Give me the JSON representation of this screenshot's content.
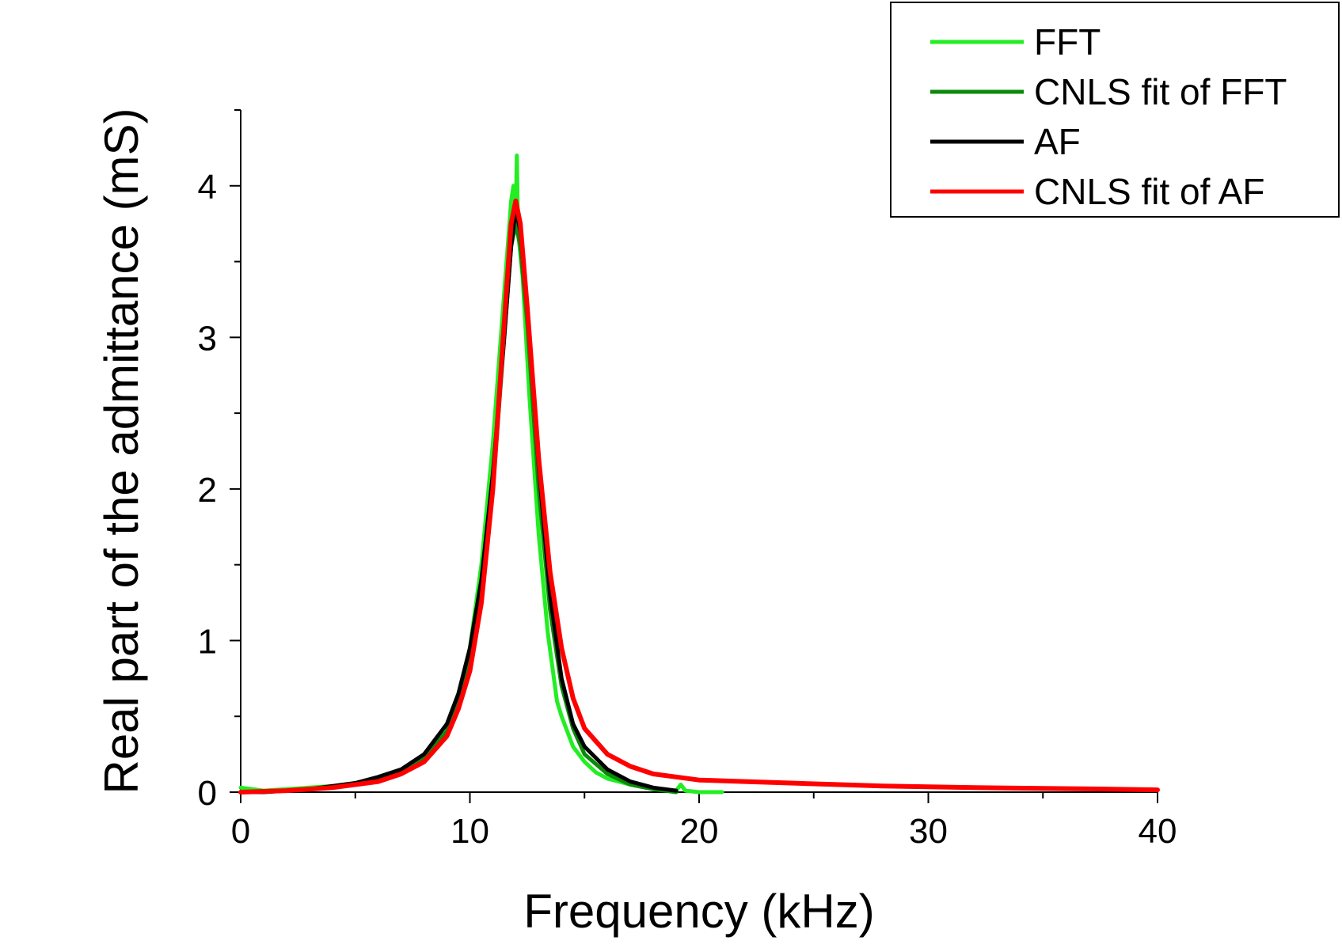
{
  "chart_data": {
    "type": "line",
    "title": "",
    "xlabel": "Frequency (kHz)",
    "ylabel": "Real part of the admittance (mS)",
    "xlim": [
      0,
      40
    ],
    "ylim": [
      0,
      4.5
    ],
    "x_ticks": [
      0,
      10,
      20,
      30,
      40
    ],
    "x_tick_labels": [
      "0",
      "10",
      "20",
      "30",
      "40"
    ],
    "y_ticks": [
      0,
      1,
      2,
      3,
      4
    ],
    "y_tick_labels": [
      "0",
      "1",
      "2",
      "3",
      "4"
    ],
    "grid": false,
    "legend_position": "top-right",
    "series": [
      {
        "name": "FFT",
        "color": "#22ee22",
        "points": [
          [
            0,
            0.03
          ],
          [
            1,
            0.01
          ],
          [
            2,
            0.02
          ],
          [
            3,
            0.03
          ],
          [
            4,
            0.04
          ],
          [
            5,
            0.06
          ],
          [
            5.5,
            0.08
          ],
          [
            6,
            0.09
          ],
          [
            6.5,
            0.11
          ],
          [
            7,
            0.14
          ],
          [
            7.5,
            0.18
          ],
          [
            8,
            0.25
          ],
          [
            8.5,
            0.32
          ],
          [
            9,
            0.45
          ],
          [
            9.5,
            0.65
          ],
          [
            10,
            0.95
          ],
          [
            10.5,
            1.5
          ],
          [
            11,
            2.3
          ],
          [
            11.3,
            2.9
          ],
          [
            11.6,
            3.5
          ],
          [
            11.8,
            3.9
          ],
          [
            11.9,
            4.0
          ],
          [
            12.0,
            3.8
          ],
          [
            12.05,
            4.2
          ],
          [
            12.1,
            3.7
          ],
          [
            12.3,
            3.4
          ],
          [
            12.6,
            2.6
          ],
          [
            13,
            1.7
          ],
          [
            13.4,
            1.05
          ],
          [
            13.8,
            0.6
          ],
          [
            14,
            0.5
          ],
          [
            14.5,
            0.3
          ],
          [
            15,
            0.2
          ],
          [
            15.5,
            0.13
          ],
          [
            16,
            0.09
          ],
          [
            17,
            0.05
          ],
          [
            18,
            0.02
          ],
          [
            19,
            0.01
          ],
          [
            19.2,
            0.05
          ],
          [
            19.4,
            0.01
          ],
          [
            20,
            0.0
          ],
          [
            21,
            0.0
          ]
        ]
      },
      {
        "name": "CNLS fit of FFT",
        "color": "#0a8a0a",
        "points": [
          [
            0,
            0.0
          ],
          [
            2,
            0.01
          ],
          [
            4,
            0.03
          ],
          [
            6,
            0.08
          ],
          [
            7,
            0.13
          ],
          [
            8,
            0.22
          ],
          [
            9,
            0.4
          ],
          [
            10,
            0.85
          ],
          [
            10.5,
            1.3
          ],
          [
            11,
            2.0
          ],
          [
            11.5,
            3.0
          ],
          [
            11.8,
            3.6
          ],
          [
            12.0,
            3.75
          ],
          [
            12.2,
            3.6
          ],
          [
            12.5,
            3.1
          ],
          [
            13,
            2.0
          ],
          [
            13.5,
            1.2
          ],
          [
            14,
            0.7
          ],
          [
            14.5,
            0.42
          ],
          [
            15,
            0.25
          ],
          [
            16,
            0.12
          ],
          [
            17,
            0.05
          ],
          [
            18,
            0.02
          ],
          [
            19,
            0.0
          ]
        ]
      },
      {
        "name": "AF",
        "color": "#000000",
        "points": [
          [
            0,
            0.0
          ],
          [
            1,
            0.0
          ],
          [
            2,
            0.01
          ],
          [
            3,
            0.02
          ],
          [
            4,
            0.04
          ],
          [
            5,
            0.06
          ],
          [
            6,
            0.1
          ],
          [
            7,
            0.15
          ],
          [
            8,
            0.25
          ],
          [
            9,
            0.45
          ],
          [
            9.5,
            0.65
          ],
          [
            10,
            0.95
          ],
          [
            10.5,
            1.4
          ],
          [
            11,
            2.1
          ],
          [
            11.5,
            3.0
          ],
          [
            11.8,
            3.6
          ],
          [
            12,
            3.85
          ],
          [
            12.2,
            3.7
          ],
          [
            12.5,
            3.2
          ],
          [
            13,
            2.15
          ],
          [
            13.5,
            1.3
          ],
          [
            14,
            0.75
          ],
          [
            14.5,
            0.45
          ],
          [
            15,
            0.3
          ],
          [
            16,
            0.15
          ],
          [
            17,
            0.07
          ],
          [
            18,
            0.03
          ],
          [
            19,
            0.01
          ]
        ]
      },
      {
        "name": "CNLS fit of AF",
        "color": "#ff0000",
        "points": [
          [
            0,
            0.0
          ],
          [
            2,
            0.01
          ],
          [
            4,
            0.03
          ],
          [
            6,
            0.07
          ],
          [
            7,
            0.12
          ],
          [
            8,
            0.2
          ],
          [
            9,
            0.37
          ],
          [
            9.5,
            0.55
          ],
          [
            10,
            0.8
          ],
          [
            10.5,
            1.25
          ],
          [
            11,
            2.0
          ],
          [
            11.5,
            3.1
          ],
          [
            11.8,
            3.75
          ],
          [
            12,
            3.9
          ],
          [
            12.2,
            3.75
          ],
          [
            12.5,
            3.2
          ],
          [
            13,
            2.2
          ],
          [
            13.5,
            1.45
          ],
          [
            14,
            0.95
          ],
          [
            14.5,
            0.62
          ],
          [
            15,
            0.42
          ],
          [
            16,
            0.25
          ],
          [
            17,
            0.17
          ],
          [
            18,
            0.12
          ],
          [
            19,
            0.1
          ],
          [
            20,
            0.08
          ],
          [
            22,
            0.07
          ],
          [
            24,
            0.06
          ],
          [
            26,
            0.05
          ],
          [
            28,
            0.04
          ],
          [
            30,
            0.035
          ],
          [
            32,
            0.03
          ],
          [
            35,
            0.025
          ],
          [
            38,
            0.02
          ],
          [
            40,
            0.015
          ]
        ]
      }
    ]
  }
}
